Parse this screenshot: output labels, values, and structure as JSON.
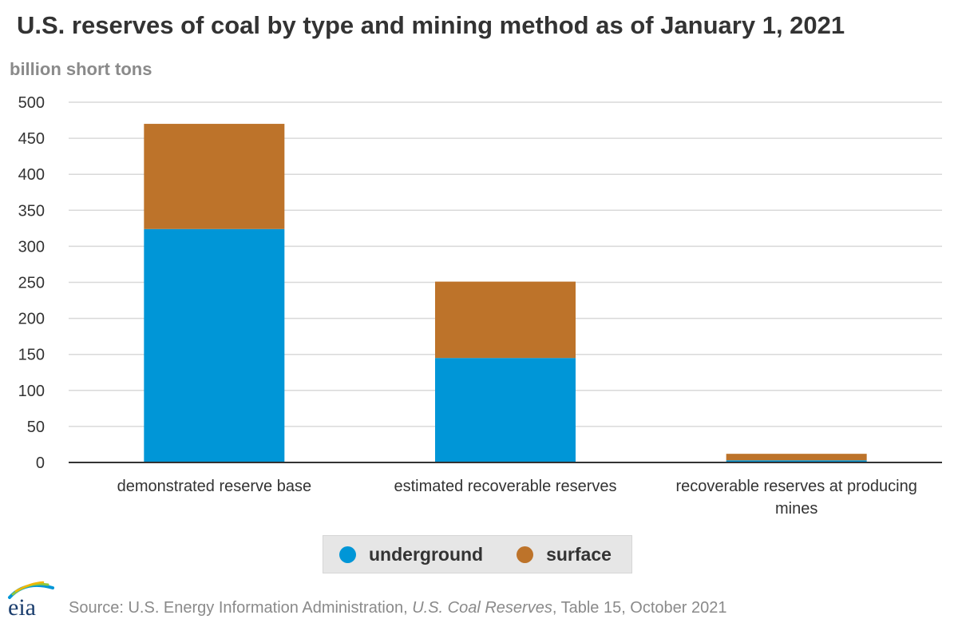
{
  "title": "U.S. reserves of coal by type and mining method as of January 1, 2021",
  "unit_label": "billion short tons",
  "colors": {
    "underground": "#0096d7",
    "surface": "#bd732a",
    "grid": "#d9d9d9",
    "axis": "#333333",
    "text": "#333333"
  },
  "chart_data": {
    "type": "bar",
    "stacked": true,
    "categories": [
      [
        "demonstrated reserve base"
      ],
      [
        "estimated recoverable reserves"
      ],
      [
        "recoverable reserves at producing",
        "mines"
      ]
    ],
    "series": [
      {
        "name": "underground",
        "values": [
          324,
          145,
          3
        ]
      },
      {
        "name": "surface",
        "values": [
          146,
          106,
          9
        ]
      }
    ],
    "ylim": [
      0,
      500
    ],
    "yticks": [
      0,
      50,
      100,
      150,
      200,
      250,
      300,
      350,
      400,
      450,
      500
    ],
    "ylabel": "billion short tons",
    "grid": true,
    "legend_position": "bottom-center"
  },
  "legend": {
    "items": [
      "underground",
      "surface"
    ]
  },
  "logo": {
    "text": "eia"
  },
  "source": {
    "prefix": "Source: U.S. Energy Information Administration, ",
    "publication": "U.S. Coal Reserves",
    "suffix": ", Table 15, October 2021"
  }
}
